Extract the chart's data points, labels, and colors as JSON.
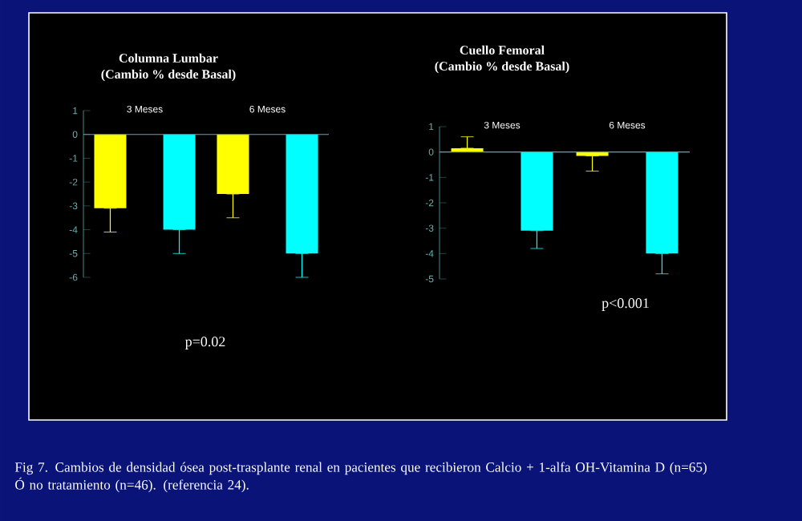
{
  "chart_data": [
    {
      "type": "bar",
      "title": "Columna Lumbar",
      "subtitle": "(Cambio % desde Basal)",
      "categories": [
        "3 Meses",
        "6 Meses"
      ],
      "series": [
        {
          "color": "#ffff00",
          "values": [
            -3.1,
            -2.5
          ],
          "errors": [
            [
              -4.1,
              -3.1
            ],
            [
              -3.5,
              -2.5
            ]
          ]
        },
        {
          "color": "#00ffff",
          "values": [
            -4.0,
            -5.0
          ],
          "errors": [
            [
              -5.0,
              -4.0
            ],
            [
              -6.0,
              -5.0
            ]
          ]
        }
      ],
      "ylim": [
        -6,
        1
      ],
      "yticks": [
        -6,
        -5,
        -4,
        -3,
        -2,
        -1,
        0,
        1
      ],
      "annotations": [
        "p=0.02",
        "Fig 7. Cambios de densidad ósea post-trasplante renal en pacientes que recibieron Calcio + 1-alfa OH-Vitamina D (n=65) Ó no tratamiento (n=46). (referencia 24)."
      ]
    },
    {
      "type": "bar",
      "title": "Cuello Femoral",
      "subtitle": "(Cambio % desde Basal)",
      "categories": [
        "3 Meses",
        "6 Meses"
      ],
      "series": [
        {
          "color": "#ffff00",
          "values": [
            0.15,
            -0.15
          ],
          "errors": [
            [
              0.15,
              0.6
            ],
            [
              -0.75,
              -0.15
            ]
          ]
        },
        {
          "color": "#00ffff",
          "values": [
            -3.1,
            -4.0
          ],
          "errors": [
            [
              -3.8,
              -3.1
            ],
            [
              -4.8,
              -4.0
            ]
          ]
        }
      ],
      "ylim": [
        -5,
        1
      ],
      "yticks": [
        -5,
        -4,
        -3,
        -2,
        -1,
        0,
        1
      ],
      "annotations": [
        "p<0.001"
      ]
    }
  ]
}
